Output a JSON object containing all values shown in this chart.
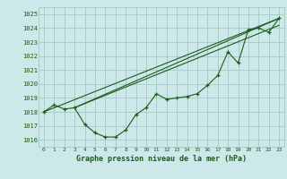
{
  "title": "Graphe pression niveau de la mer (hPa)",
  "bg_color": "#cce8e8",
  "grid_color": "#aacccc",
  "line_color": "#1a5c1a",
  "xlim": [
    -0.5,
    23.5
  ],
  "ylim": [
    1015.5,
    1025.5
  ],
  "yticks": [
    1016,
    1017,
    1018,
    1019,
    1020,
    1021,
    1022,
    1023,
    1024,
    1025
  ],
  "xticks": [
    0,
    1,
    2,
    3,
    4,
    5,
    6,
    7,
    8,
    9,
    10,
    11,
    12,
    13,
    14,
    15,
    16,
    17,
    18,
    19,
    20,
    21,
    22,
    23
  ],
  "series_main": {
    "x": [
      0,
      1,
      2,
      3,
      4,
      5,
      6,
      7,
      8,
      9,
      10,
      11,
      12,
      13,
      14,
      15,
      16,
      17,
      18,
      19,
      20,
      21,
      22,
      23
    ],
    "y": [
      1018.0,
      1018.5,
      1018.2,
      1018.3,
      1017.1,
      1016.5,
      1016.2,
      1016.2,
      1016.7,
      1017.8,
      1018.3,
      1019.3,
      1018.9,
      1019.0,
      1019.1,
      1019.3,
      1019.9,
      1020.6,
      1022.3,
      1021.5,
      1023.9,
      1024.0,
      1023.7,
      1024.7
    ]
  },
  "series_linear1": {
    "x": [
      0,
      23
    ],
    "y": [
      1018.0,
      1024.7
    ]
  },
  "series_linear2": {
    "x": [
      3,
      23
    ],
    "y": [
      1018.3,
      1024.7
    ]
  },
  "series_linear3": {
    "x": [
      3,
      23
    ],
    "y": [
      1018.3,
      1024.2
    ]
  }
}
